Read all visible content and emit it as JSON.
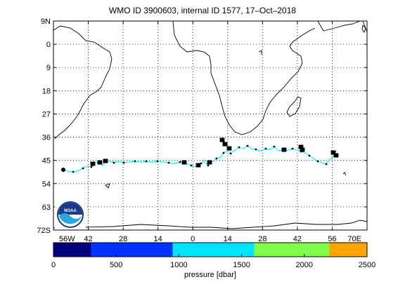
{
  "title": "WMO ID 3900603, internal ID 1577, 17–Oct–2018",
  "map": {
    "lat_ticks": [
      "9N",
      "0",
      "9",
      "18",
      "27",
      "36",
      "45",
      "54",
      "63",
      "72S"
    ],
    "lon_ticks": [
      "56W",
      "42",
      "28",
      "14",
      "0",
      "14",
      "28",
      "42",
      "56",
      "70E"
    ],
    "lat_range": [
      -72,
      9
    ],
    "lon_range": [
      -56,
      70
    ],
    "grid": "dotted",
    "land_outline_color": "#000000",
    "logo": "noaa-logo-icon",
    "logo_text": "NOAA"
  },
  "trajectory": {
    "line_color": "#00ffff",
    "point_color": "#000000",
    "start_marker": "filled-circle"
  },
  "colorbar": {
    "label": "pressure [dbar]",
    "ticks": [
      "0",
      "500",
      "1000",
      "1500",
      "2000",
      "2500"
    ],
    "range": [
      0,
      2500
    ],
    "bins": [
      {
        "from": 0,
        "to": 300,
        "color": "#00007f"
      },
      {
        "from": 300,
        "to": 950,
        "color": "#0033ff"
      },
      {
        "from": 950,
        "to": 1600,
        "color": "#00e5ff"
      },
      {
        "from": 1600,
        "to": 2200,
        "color": "#7fff4c"
      },
      {
        "from": 2200,
        "to": 2500,
        "color": "#ffa500"
      }
    ]
  }
}
